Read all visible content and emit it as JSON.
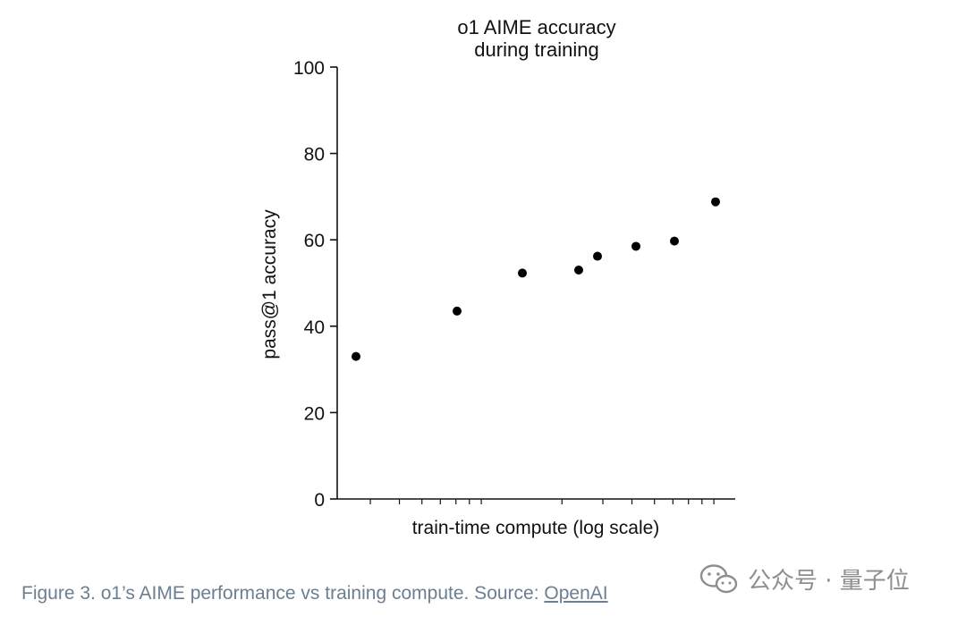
{
  "chart_data": {
    "type": "scatter",
    "title": [
      "o1 AIME accuracy",
      "during training"
    ],
    "xlabel": "train-time compute (log scale)",
    "ylabel": "pass@1 accuracy",
    "x_scale": "log",
    "ylim": [
      0,
      100
    ],
    "yticks": [
      0,
      20,
      40,
      60,
      80,
      100
    ],
    "ytick_labels": [
      "0",
      "20",
      "40",
      "60",
      "80",
      "100"
    ],
    "grid": false,
    "legend": "none",
    "points_y": [
      33,
      43.5,
      52.3,
      53,
      56.2,
      58.5,
      59.7,
      68.8
    ],
    "marker_color": "#000000"
  },
  "caption": {
    "text": "Figure 3. o1’s AIME performance vs training compute. Source: ",
    "link": "OpenAI"
  },
  "watermark": {
    "text": "公众号 · 量子位",
    "icon": "wechat-icon"
  }
}
